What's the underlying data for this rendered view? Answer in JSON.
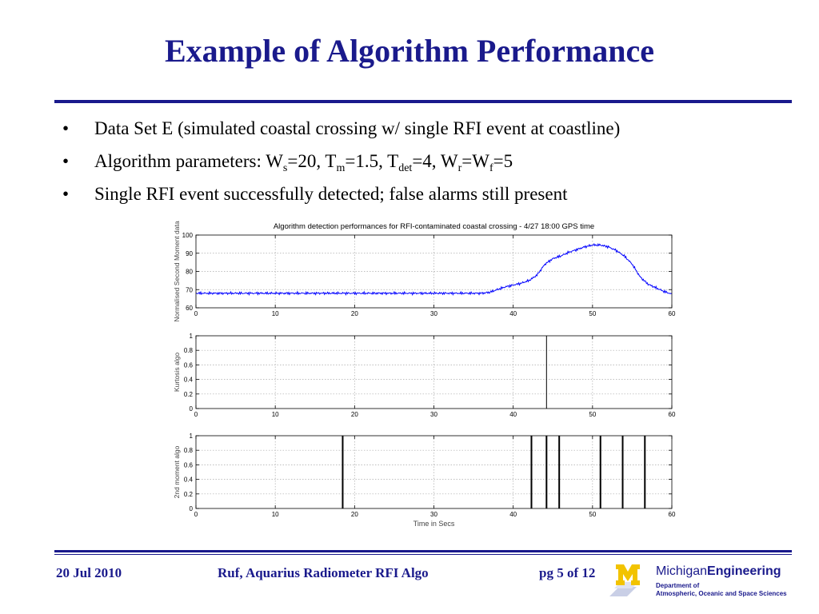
{
  "slide": {
    "title": "Example of Algorithm Performance",
    "bullets": [
      {
        "parts": [
          {
            "t": "Data Set E (simulated coastal crossing w/ single RFI event at coastline)"
          }
        ]
      },
      {
        "parts": [
          {
            "t": "Algorithm parameters: W"
          },
          {
            "t": "s",
            "sub": true
          },
          {
            "t": "=20, T"
          },
          {
            "t": "m",
            "sub": true
          },
          {
            "t": "=1.5, T"
          },
          {
            "t": "det",
            "sub": true
          },
          {
            "t": "=4, W"
          },
          {
            "t": "r",
            "sub": true
          },
          {
            "t": "=W"
          },
          {
            "t": "f",
            "sub": true
          },
          {
            "t": "=5"
          }
        ]
      },
      {
        "parts": [
          {
            "t": "Single RFI event successfully detected; false alarms still present"
          }
        ]
      }
    ],
    "bullet_char": "•",
    "footer": {
      "date": "20 Jul 2010",
      "center": "Ruf, Aquarius Radiometer RFI Algo",
      "page": "pg 5 of 12",
      "brand_name_regular": "Michigan",
      "brand_name_bold": "Engineering",
      "brand_dept_line1": "Department of",
      "brand_dept_line2": "Atmospheric, Oceanic and Space Sciences",
      "logo_icon": "block-m-logo-icon"
    },
    "colors": {
      "accent": "#1a1a8c",
      "logo_gold": "#f2c300",
      "series_blue": "#0000ff"
    }
  },
  "chart_data": [
    {
      "type": "line",
      "title": "Algorithm detection performances for RFI-contaminated coastal crossing - 4/27 18:00 GPS time",
      "xlabel": "",
      "ylabel": "Normalised Second Moment data",
      "xlim": [
        0,
        60
      ],
      "ylim": [
        60,
        100
      ],
      "xticks": [
        0,
        10,
        20,
        30,
        40,
        50,
        60
      ],
      "yticks": [
        60,
        70,
        80,
        90,
        100
      ],
      "grid": true,
      "series": [
        {
          "x": [
            0,
            5,
            10,
            15,
            20,
            25,
            30,
            35,
            36,
            37,
            38,
            39,
            40,
            41,
            42,
            43,
            44,
            45,
            46,
            47,
            48,
            49,
            50,
            51,
            52,
            53,
            54,
            55,
            56,
            57,
            58,
            59,
            60
          ],
          "y": [
            68,
            68,
            68,
            68,
            68,
            68,
            68,
            68,
            68,
            68.5,
            70,
            71.5,
            72.5,
            73.5,
            75,
            78,
            84,
            87,
            88.5,
            90.5,
            92,
            93.5,
            94.5,
            94.5,
            93.5,
            91.5,
            88.5,
            84,
            77,
            73,
            71,
            69,
            67.5
          ]
        }
      ]
    },
    {
      "type": "line",
      "title": "",
      "xlabel": "",
      "ylabel": "Kurtosis algo",
      "xlim": [
        0,
        60
      ],
      "ylim": [
        0,
        1
      ],
      "xticks": [
        0,
        10,
        20,
        30,
        40,
        50,
        60
      ],
      "yticks": [
        0,
        0.2,
        0.4,
        0.6,
        0.8,
        1
      ],
      "grid": true,
      "detections": [
        44.2
      ]
    },
    {
      "type": "line",
      "title": "",
      "xlabel": "Time in Secs",
      "ylabel": "2nd moment algo",
      "xlim": [
        0,
        60
      ],
      "ylim": [
        0,
        1
      ],
      "xticks": [
        0,
        10,
        20,
        30,
        40,
        50,
        60
      ],
      "yticks": [
        0,
        0.2,
        0.4,
        0.6,
        0.8,
        1
      ],
      "grid": true,
      "detections": [
        18.5,
        42.3,
        44.2,
        45.8,
        51,
        53.8,
        56.6
      ]
    }
  ]
}
